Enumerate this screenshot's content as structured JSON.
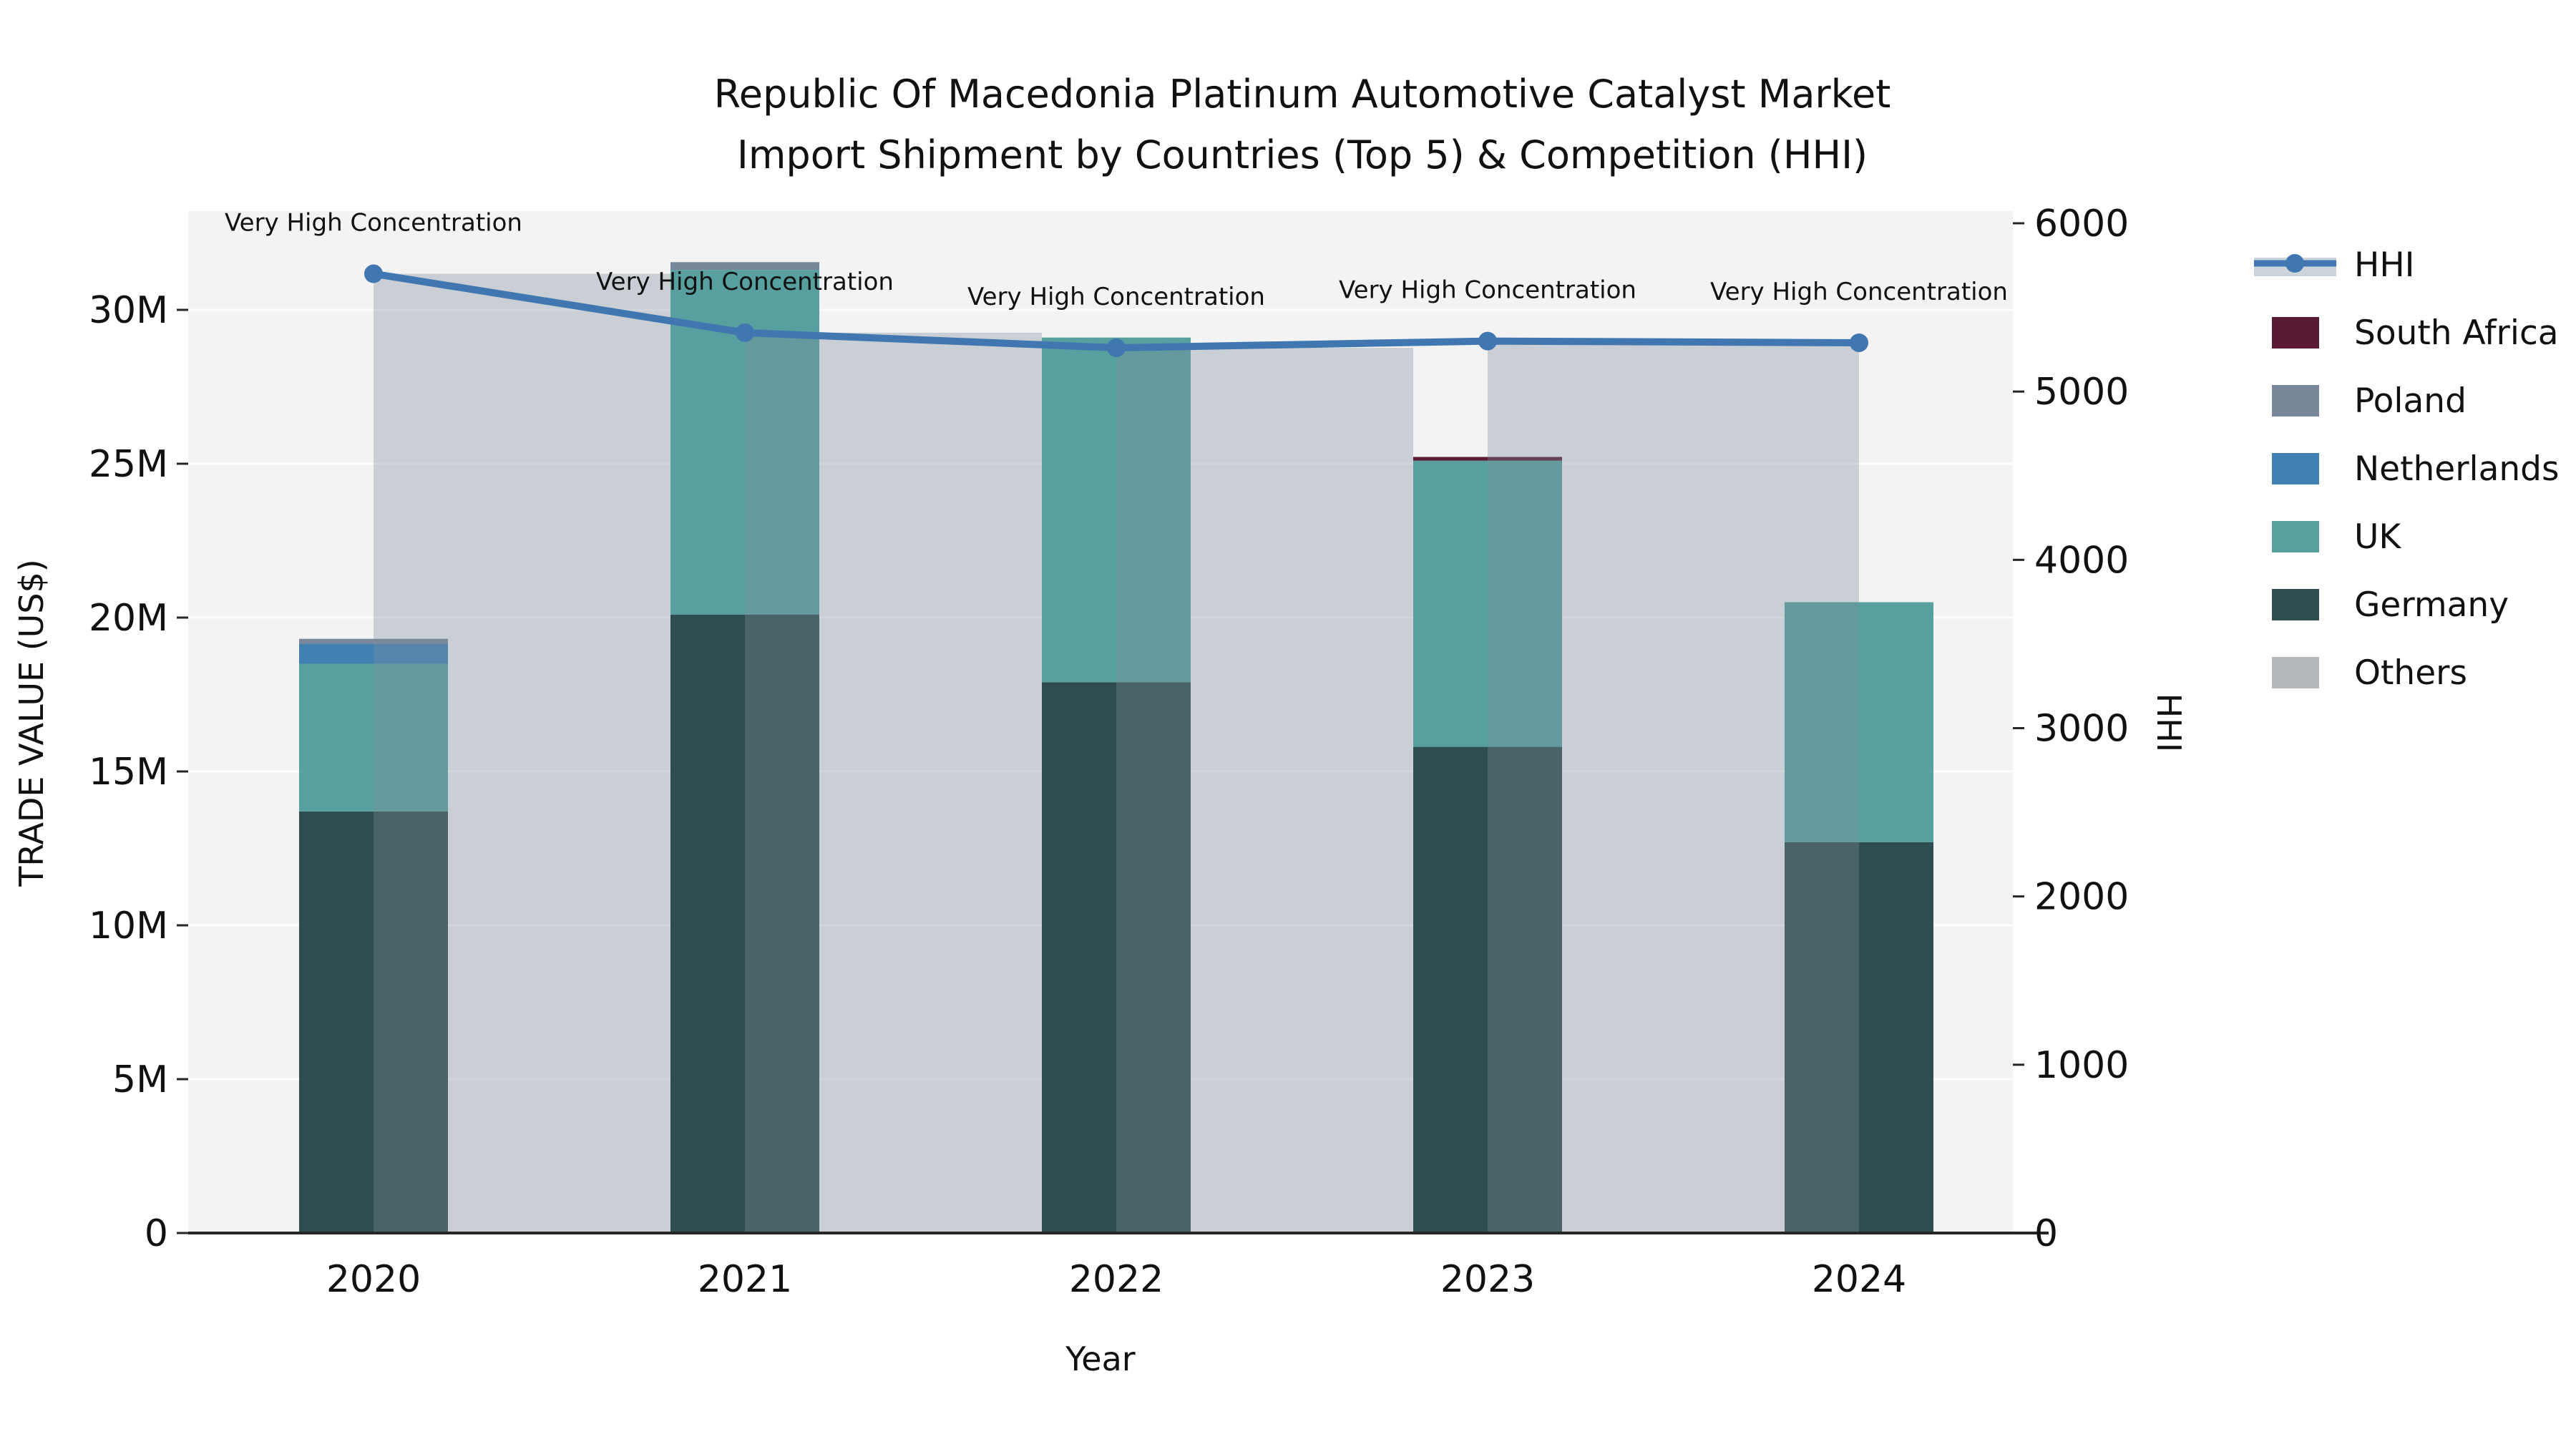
{
  "title": {
    "line1": "Republic Of Macedonia Platinum Automotive Catalyst Market",
    "line2": "Import Shipment by Countries (Top 5) & Competition (HHI)"
  },
  "chart_data": {
    "type": "bar",
    "subtype": "stacked-bars-with-line",
    "categories": [
      "2020",
      "2021",
      "2022",
      "2023",
      "2024"
    ],
    "series": [
      {
        "name": "Germany",
        "color": "#2E4D50",
        "values": [
          13.7,
          20.1,
          17.9,
          15.8,
          12.7
        ]
      },
      {
        "name": "UK",
        "color": "#58A0A0",
        "values": [
          4.8,
          11.2,
          11.2,
          9.3,
          7.8
        ]
      },
      {
        "name": "Netherlands",
        "color": "#4280B4",
        "values": [
          0.65,
          0,
          0,
          0,
          0
        ]
      },
      {
        "name": "Poland",
        "color": "#78889A",
        "values": [
          0.16,
          0.25,
          0,
          0,
          0
        ]
      },
      {
        "name": "South Africa",
        "color": "#5A1A33",
        "values": [
          0,
          0,
          0,
          0.12,
          0
        ]
      },
      {
        "name": "Others",
        "color": "#B4BABC",
        "values": [
          0,
          0,
          0,
          0,
          0
        ]
      }
    ],
    "line_series": {
      "name": "HHI",
      "color": "#4077B0",
      "bar_fill": "rgba(124,139,151,0.35)",
      "values": [
        5700,
        5350,
        5260,
        5300,
        5290
      ]
    },
    "annotations": [
      "Very High Concentration",
      "Very High Concentration",
      "Very High Concentration",
      "Very High Concentration",
      "Very High Concentration"
    ],
    "xlabel": "Year",
    "ylabel": "TRADE VALUE (US$)",
    "y2label": "HHI",
    "ylim": [
      0,
      33.2
    ],
    "y2lim": [
      0,
      6000
    ],
    "left_ticks": [
      {
        "v": 0,
        "label": "0"
      },
      {
        "v": 5,
        "label": "5M"
      },
      {
        "v": 10,
        "label": "10M"
      },
      {
        "v": 15,
        "label": "15M"
      },
      {
        "v": 20,
        "label": "20M"
      },
      {
        "v": 25,
        "label": "25M"
      },
      {
        "v": 30,
        "label": "30M"
      }
    ],
    "right_ticks": [
      {
        "v": 0,
        "label": "0"
      },
      {
        "v": 1000,
        "label": "1000"
      },
      {
        "v": 2000,
        "label": "2000"
      },
      {
        "v": 3000,
        "label": "3000"
      },
      {
        "v": 4000,
        "label": "4000"
      },
      {
        "v": 5000,
        "label": "5000"
      },
      {
        "v": 6000,
        "label": "6000"
      }
    ],
    "grid": true,
    "legend_position": "right"
  },
  "legend": {
    "items": [
      {
        "label": "HHI",
        "type": "line",
        "color": "#4077B0",
        "band": "#CDD3DB"
      },
      {
        "label": "South Africa",
        "type": "swatch",
        "color": "#5A1A33"
      },
      {
        "label": "Poland",
        "type": "swatch",
        "color": "#78889A"
      },
      {
        "label": "Netherlands",
        "type": "swatch",
        "color": "#4280B4"
      },
      {
        "label": "UK",
        "type": "swatch",
        "color": "#58A0A0"
      },
      {
        "label": "Germany",
        "type": "swatch",
        "color": "#2E4D50"
      },
      {
        "label": "Others",
        "type": "swatch",
        "color": "#B4BABC"
      }
    ]
  },
  "colors": {
    "plot_background": "#F3F3F4",
    "gridline": "#FFFFFF",
    "axis_line": "#262626",
    "text": "#111111"
  }
}
